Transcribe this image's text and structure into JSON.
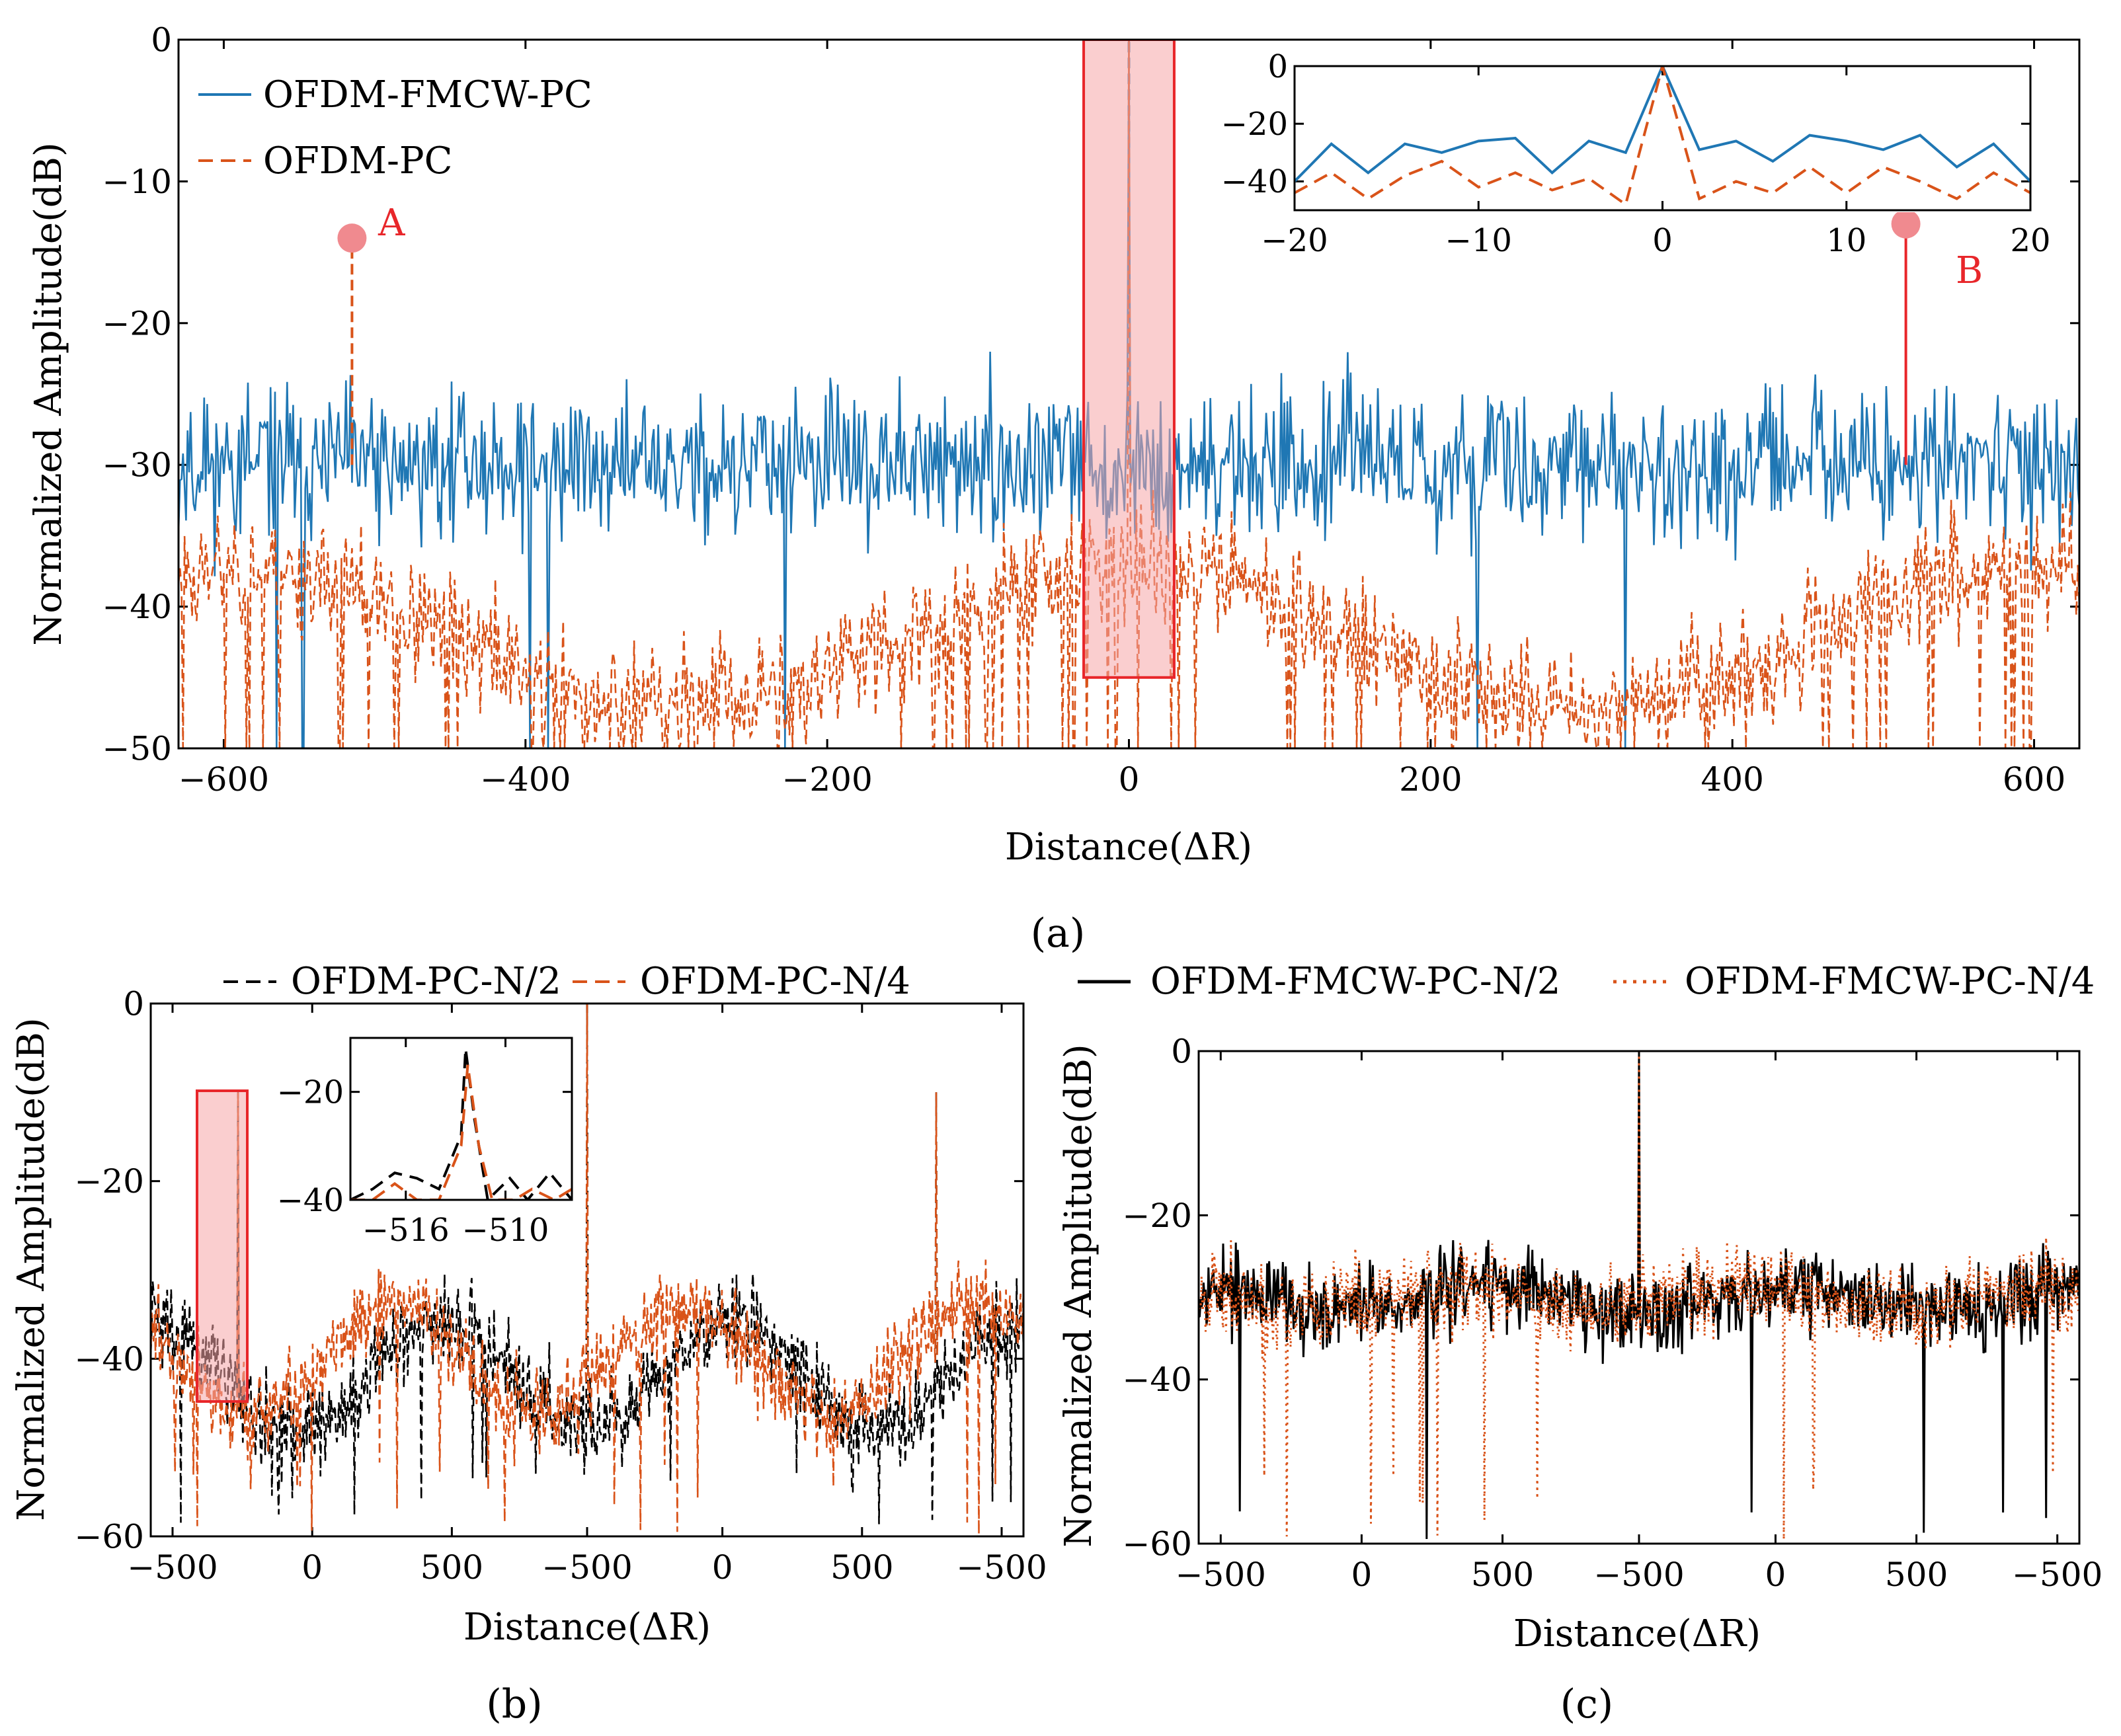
{
  "colors": {
    "blue": "#1f77b4",
    "orange": "#d95319",
    "black": "#000000",
    "highlight_fill": "#f6a5a8",
    "highlight_stroke": "#e8262a",
    "marker": "#f08a8f"
  },
  "chart_data": [
    {
      "id": "a",
      "type": "line",
      "caption": "(a)",
      "xlabel": "Distance(ΔR)",
      "ylabel": "Normalized Amplitude(dB)",
      "xlim": [
        -630,
        630
      ],
      "ylim": [
        -50,
        0
      ],
      "xticks": [
        -600,
        -400,
        -200,
        0,
        200,
        400,
        600
      ],
      "xtick_labels": [
        "−600",
        "−400",
        "−200",
        "0",
        "200",
        "400",
        "600"
      ],
      "yticks": [
        0,
        -10,
        -20,
        -30,
        -40,
        -50
      ],
      "ytick_labels": [
        "0",
        "−10",
        "−20",
        "−30",
        "−40",
        "−50"
      ],
      "legend": [
        "OFDM-FMCW-PC",
        "OFDM-PC"
      ],
      "legend_position": "top-left",
      "series": [
        {
          "name": "OFDM-FMCW-PC",
          "style": "solid",
          "color": "blue",
          "baseline": -30,
          "spread": 5,
          "peak": {
            "x": 0,
            "y": 0
          }
        },
        {
          "name": "OFDM-PC",
          "style": "dashed",
          "color": "orange",
          "baseline": -42,
          "spread": 5,
          "peak": {
            "x": 0,
            "y": 0
          }
        }
      ],
      "annotations": [
        {
          "label": "A",
          "x": -515,
          "y": -14,
          "series": "OFDM-PC"
        },
        {
          "label": "B",
          "x": 515,
          "y": -13,
          "series": "OFDM-FMCW-PC"
        }
      ],
      "highlight_box": {
        "x0": -30,
        "x1": 30,
        "y0": -45,
        "y1": 0
      },
      "inset": {
        "xlim": [
          -20,
          20
        ],
        "ylim": [
          -50,
          0
        ],
        "xticks": [
          -20,
          -10,
          0,
          10,
          20
        ],
        "xtick_labels": [
          "−20",
          "−10",
          "0",
          "10",
          "20"
        ],
        "yticks": [
          0,
          -20,
          -40
        ],
        "ytick_labels": [
          "0",
          "−20",
          "−40"
        ],
        "series": [
          {
            "name": "OFDM-FMCW-PC",
            "x": [
              -20,
              -18,
              -16,
              -14,
              -12,
              -10,
              -8,
              -6,
              -4,
              -2,
              0,
              2,
              4,
              6,
              8,
              10,
              12,
              14,
              16,
              18,
              20
            ],
            "y": [
              -40,
              -27,
              -37,
              -27,
              -30,
              -26,
              -25,
              -37,
              -26,
              -30,
              0,
              -29,
              -26,
              -33,
              -24,
              -26,
              -29,
              -24,
              -35,
              -27,
              -40
            ]
          },
          {
            "name": "OFDM-PC",
            "x": [
              -20,
              -18,
              -16,
              -14,
              -12,
              -10,
              -8,
              -6,
              -4,
              -2,
              0,
              2,
              4,
              6,
              8,
              10,
              12,
              14,
              16,
              18,
              20
            ],
            "y": [
              -44,
              -37,
              -46,
              -38,
              -33,
              -42,
              -37,
              -43,
              -39,
              -48,
              0,
              -46,
              -40,
              -44,
              -35,
              -44,
              -35,
              -40,
              -46,
              -37,
              -44
            ]
          }
        ]
      }
    },
    {
      "id": "b",
      "type": "line",
      "caption": "(b)",
      "xlabel": "Distance(ΔR)",
      "ylabel": "Normalized Amplitude(dB)",
      "ylim": [
        -60,
        0
      ],
      "xtick_labels": [
        "−500",
        "0",
        "500",
        "−500",
        "0",
        "500",
        "−500"
      ],
      "yticks": [
        0,
        -20,
        -40,
        -60
      ],
      "ytick_labels": [
        "0",
        "−20",
        "−40",
        "−60"
      ],
      "legend": [
        "OFDM-PC-N/2",
        "OFDM-PC-N/4"
      ],
      "legend_position": "top",
      "series": [
        {
          "name": "OFDM-PC-N/2",
          "style": "dashed",
          "color": "black",
          "baseline": -42
        },
        {
          "name": "OFDM-PC-N/4",
          "style": "dashed",
          "color": "orange",
          "baseline": -40
        }
      ],
      "peaks": [
        {
          "segment": 1,
          "offset": -512,
          "y": -10
        },
        {
          "segment": 2,
          "offset": 0,
          "y": 0
        },
        {
          "segment": 3,
          "offset": 512,
          "y": -10
        }
      ],
      "inset": {
        "xtick_labels": [
          "−516",
          "−510"
        ],
        "yticks": [
          -20,
          -40
        ],
        "ytick_labels": [
          "−20",
          "−40"
        ],
        "ylim": [
          -40,
          -10
        ]
      }
    },
    {
      "id": "c",
      "type": "line",
      "caption": "(c)",
      "xlabel": "Distance(ΔR)",
      "ylabel": "Normalized Amplitude(dB)",
      "ylim": [
        -60,
        0
      ],
      "xtick_labels": [
        "−500",
        "0",
        "500",
        "−500",
        "0",
        "500",
        "−500"
      ],
      "yticks": [
        0,
        -20,
        -40,
        -60
      ],
      "ytick_labels": [
        "0",
        "−20",
        "−40",
        "−60"
      ],
      "legend": [
        "OFDM-FMCW-PC-N/2",
        "OFDM-FMCW-PC-N/4"
      ],
      "legend_position": "top",
      "series": [
        {
          "name": "OFDM-FMCW-PC-N/2",
          "style": "solid",
          "color": "black",
          "baseline": -30
        },
        {
          "name": "OFDM-FMCW-PC-N/4",
          "style": "dotted",
          "color": "orange",
          "baseline": -30
        }
      ],
      "peaks": [
        {
          "segment": 2,
          "offset": 0,
          "y": 0
        }
      ]
    }
  ]
}
